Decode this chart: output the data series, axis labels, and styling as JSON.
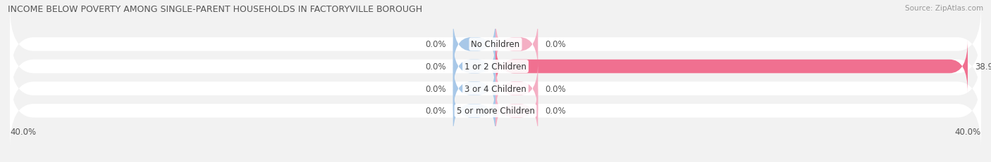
{
  "title": "INCOME BELOW POVERTY AMONG SINGLE-PARENT HOUSEHOLDS IN FACTORYVILLE BOROUGH",
  "source": "Source: ZipAtlas.com",
  "categories": [
    "No Children",
    "1 or 2 Children",
    "3 or 4 Children",
    "5 or more Children"
  ],
  "single_father": [
    0.0,
    0.0,
    0.0,
    0.0
  ],
  "single_mother": [
    0.0,
    38.9,
    0.0,
    0.0
  ],
  "xlim": [
    -40,
    40
  ],
  "father_color": "#a8c8e8",
  "mother_color": "#f07090",
  "mother_color_small": "#f4afc4",
  "bar_height": 0.62,
  "background_color": "#f2f2f2",
  "bar_bg_color": "#ffffff",
  "title_fontsize": 9.0,
  "label_fontsize": 8.5,
  "annot_fontsize": 8.5,
  "legend_fontsize": 8.5,
  "source_fontsize": 7.5
}
